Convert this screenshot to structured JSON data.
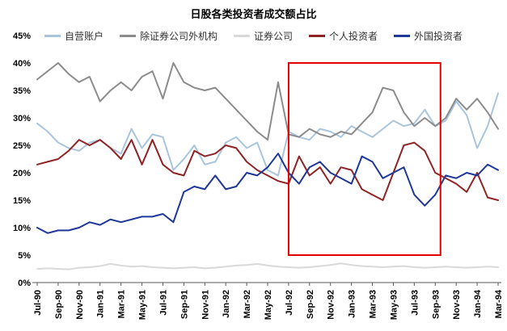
{
  "chart_data": {
    "type": "line",
    "title": "日股各类投资者成交额占比",
    "grid": false,
    "legend_position": "top",
    "y_axis": {
      "min": 0,
      "max": 45,
      "step": 5,
      "unit": "%"
    },
    "x_tick_every": 2,
    "categories": [
      "Jul-90",
      "Aug-90",
      "Sep-90",
      "Oct-90",
      "Nov-90",
      "Dec-90",
      "Jan-91",
      "Feb-91",
      "Mar-91",
      "Apr-91",
      "May-91",
      "Jun-91",
      "Jul-91",
      "Aug-91",
      "Sep-91",
      "Oct-91",
      "Nov-91",
      "Dec-91",
      "Jan-92",
      "Feb-92",
      "Mar-92",
      "Apr-92",
      "May-92",
      "Jun-92",
      "Jul-92",
      "Aug-92",
      "Sep-92",
      "Oct-92",
      "Nov-92",
      "Dec-92",
      "Jan-93",
      "Feb-93",
      "Mar-93",
      "Apr-93",
      "May-93",
      "Jun-93",
      "Jul-93",
      "Aug-93",
      "Sep-93",
      "Oct-93",
      "Nov-93",
      "Dec-93",
      "Jan-94",
      "Feb-94",
      "Mar-94"
    ],
    "series": [
      {
        "name": "自营账户",
        "color": "#a9c5de",
        "values": [
          29,
          27.5,
          25.5,
          24.5,
          24,
          25.5,
          26,
          24.5,
          23.5,
          28,
          24.5,
          27,
          26.5,
          20.5,
          22.5,
          25,
          21.5,
          22,
          25.5,
          26.5,
          24.5,
          25.5,
          20.5,
          19.5,
          27.5,
          26.5,
          26,
          28,
          27.5,
          26.5,
          28.5,
          27.5,
          26.5,
          28,
          29.5,
          28.5,
          29,
          31.5,
          28.5,
          29.5,
          33,
          30.5,
          24.5,
          28.5,
          34.5
        ]
      },
      {
        "name": "除证券公司外机构",
        "color": "#8c8c8c",
        "values": [
          37,
          38.5,
          40,
          38,
          36.5,
          37.5,
          33,
          35,
          36.5,
          35,
          37.5,
          38.5,
          33.5,
          40,
          36.5,
          35.5,
          35,
          35.5,
          33.5,
          31.5,
          29.5,
          27.5,
          26,
          36.5,
          27,
          26.5,
          28,
          27,
          26.5,
          27.5,
          27,
          29,
          31,
          35.5,
          35,
          31,
          28.5,
          30,
          28.5,
          30,
          33.5,
          31.5,
          33.5,
          31,
          28
        ]
      },
      {
        "name": "证券公司",
        "color": "#d9d9d9",
        "values": [
          2.5,
          2.6,
          2.5,
          2.4,
          2.7,
          2.8,
          3.0,
          3.4,
          3.1,
          2.9,
          3.0,
          2.8,
          2.7,
          2.6,
          2.7,
          2.8,
          2.6,
          2.7,
          2.9,
          3.1,
          3.2,
          3.4,
          3.1,
          2.9,
          2.8,
          2.7,
          2.8,
          3.0,
          3.2,
          3.5,
          3.2,
          3.0,
          2.9,
          2.8,
          2.9,
          3.0,
          2.8,
          2.7,
          2.8,
          2.9,
          2.8,
          2.7,
          2.8,
          2.9,
          2.8
        ]
      },
      {
        "name": "个人投资者",
        "color": "#8f2426",
        "values": [
          21.5,
          22,
          22.5,
          24,
          26,
          25,
          26,
          24.5,
          22.5,
          26,
          21.5,
          26,
          21.5,
          20,
          19.5,
          24,
          23,
          23.5,
          25,
          24.5,
          22,
          20.5,
          19.5,
          18.5,
          18,
          23,
          19.5,
          21,
          18,
          21,
          20.5,
          17,
          16,
          15,
          20,
          25,
          25.5,
          24,
          20,
          19,
          18,
          16.5,
          20,
          15.5,
          15
        ]
      },
      {
        "name": "外国投资者",
        "color": "#1e3799",
        "values": [
          10,
          9,
          9.5,
          9.5,
          10,
          11,
          10.5,
          11.5,
          11,
          11.5,
          12,
          12,
          12.5,
          11,
          16.5,
          17.5,
          17,
          19.5,
          17,
          17.5,
          20,
          19.5,
          21,
          23.5,
          20,
          18,
          21,
          22,
          20,
          19,
          18,
          23,
          22,
          19,
          20,
          21,
          16,
          14,
          16,
          19.5,
          19,
          20,
          19.5,
          21.5,
          20.5
        ]
      }
    ],
    "highlight_box": {
      "x_from": "Jul-92",
      "x_to": "Oct-93",
      "x_from_index": 24,
      "x_to_index": 38.5,
      "y_from": 5,
      "y_to": 40,
      "color": "#e00000"
    }
  }
}
